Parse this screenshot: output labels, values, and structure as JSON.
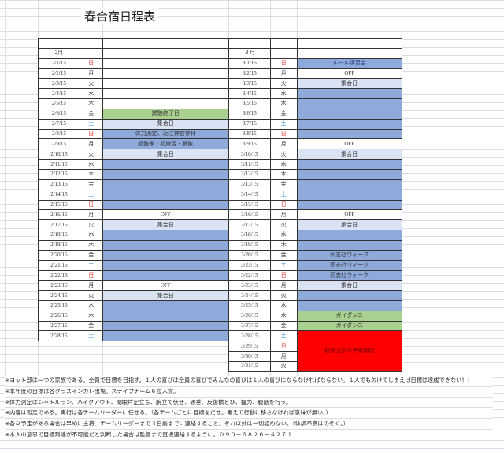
{
  "title": "春合宿日程表",
  "colors": {
    "blue": "#8eaadb",
    "light": "#dae3f3",
    "green": "#a9d08e",
    "red": "#ff0000",
    "sunday": "#e0302a",
    "saturday": "#2a8ad6"
  },
  "feb": {
    "header": "2月",
    "rows": [
      {
        "date": "2/1/15",
        "day": "日",
        "event": "",
        "fill": "white"
      },
      {
        "date": "2/2/15",
        "day": "月",
        "event": "",
        "fill": "white"
      },
      {
        "date": "2/3/15",
        "day": "火",
        "event": "",
        "fill": "white"
      },
      {
        "date": "2/4/15",
        "day": "水",
        "event": "",
        "fill": "white"
      },
      {
        "date": "2/5/15",
        "day": "木",
        "event": "",
        "fill": "white"
      },
      {
        "date": "2/6/15",
        "day": "金",
        "event": "試験終了日",
        "fill": "green"
      },
      {
        "date": "2/7/15",
        "day": "土",
        "event": "集合日",
        "fill": "light"
      },
      {
        "date": "2/8/15",
        "day": "日",
        "event": "体力測定、近江神宮参拝",
        "fill": "blue"
      },
      {
        "date": "2/9/15",
        "day": "月",
        "event": "艇整備・初練習・解散",
        "fill": "blue"
      },
      {
        "date": "2/10/15",
        "day": "火",
        "event": "集合日",
        "fill": "light"
      },
      {
        "date": "2/11/15",
        "day": "水",
        "event": "",
        "fill": "blue"
      },
      {
        "date": "2/12/15",
        "day": "木",
        "event": "",
        "fill": "blue"
      },
      {
        "date": "2/13/15",
        "day": "金",
        "event": "",
        "fill": "blue"
      },
      {
        "date": "2/14/15",
        "day": "土",
        "event": "",
        "fill": "blue"
      },
      {
        "date": "2/15/15",
        "day": "日",
        "event": "",
        "fill": "blue"
      },
      {
        "date": "2/16/15",
        "day": "月",
        "event": "OFF",
        "fill": "white"
      },
      {
        "date": "2/17/15",
        "day": "火",
        "event": "集合日",
        "fill": "light"
      },
      {
        "date": "2/18/15",
        "day": "水",
        "event": "",
        "fill": "blue"
      },
      {
        "date": "2/19/15",
        "day": "木",
        "event": "",
        "fill": "blue"
      },
      {
        "date": "2/20/15",
        "day": "金",
        "event": "",
        "fill": "blue"
      },
      {
        "date": "2/21/15",
        "day": "土",
        "event": "",
        "fill": "blue"
      },
      {
        "date": "2/22/15",
        "day": "日",
        "event": "",
        "fill": "blue"
      },
      {
        "date": "2/23/15",
        "day": "月",
        "event": "OFF",
        "fill": "white"
      },
      {
        "date": "2/24/15",
        "day": "火",
        "event": "集合日",
        "fill": "light"
      },
      {
        "date": "2/25/15",
        "day": "水",
        "event": "",
        "fill": "blue"
      },
      {
        "date": "2/26/15",
        "day": "木",
        "event": "",
        "fill": "blue"
      },
      {
        "date": "2/27/15",
        "day": "金",
        "event": "",
        "fill": "blue"
      },
      {
        "date": "2/28/15",
        "day": "土",
        "event": "",
        "fill": "blue"
      }
    ]
  },
  "mar": {
    "header": "３月",
    "rows": [
      {
        "date": "3/1/15",
        "day": "日",
        "event": "ルール講習会",
        "fill": "blue"
      },
      {
        "date": "3/2/15",
        "day": "月",
        "event": "OFF",
        "fill": "white"
      },
      {
        "date": "3/3/15",
        "day": "火",
        "event": "集合日",
        "fill": "light"
      },
      {
        "date": "3/4/15",
        "day": "水",
        "event": "",
        "fill": "blue"
      },
      {
        "date": "3/5/15",
        "day": "木",
        "event": "",
        "fill": "blue"
      },
      {
        "date": "3/6/15",
        "day": "金",
        "event": "",
        "fill": "blue"
      },
      {
        "date": "3/7/15",
        "day": "土",
        "event": "",
        "fill": "blue"
      },
      {
        "date": "3/8/15",
        "day": "日",
        "event": "",
        "fill": "blue"
      },
      {
        "date": "3/9/15",
        "day": "月",
        "event": "OFF",
        "fill": "white"
      },
      {
        "date": "3/10/15",
        "day": "火",
        "event": "集合日",
        "fill": "light"
      },
      {
        "date": "3/11/15",
        "day": "水",
        "event": "",
        "fill": "blue"
      },
      {
        "date": "3/12/15",
        "day": "木",
        "event": "",
        "fill": "blue"
      },
      {
        "date": "3/13/15",
        "day": "金",
        "event": "",
        "fill": "blue"
      },
      {
        "date": "3/14/15",
        "day": "土",
        "event": "",
        "fill": "blue"
      },
      {
        "date": "3/15/15",
        "day": "日",
        "event": "",
        "fill": "blue"
      },
      {
        "date": "3/16/15",
        "day": "月",
        "event": "OFF",
        "fill": "white"
      },
      {
        "date": "3/17/15",
        "day": "火",
        "event": "集合日",
        "fill": "light"
      },
      {
        "date": "3/18/15",
        "day": "水",
        "event": "",
        "fill": "blue"
      },
      {
        "date": "3/19/15",
        "day": "木",
        "event": "",
        "fill": "blue"
      },
      {
        "date": "3/20/15",
        "day": "金",
        "event": "同志社ウィーク",
        "fill": "blue"
      },
      {
        "date": "3/21/15",
        "day": "土",
        "event": "同志社ウィーク",
        "fill": "blue"
      },
      {
        "date": "3/22/15",
        "day": "日",
        "event": "同志社ウィーク",
        "fill": "blue"
      },
      {
        "date": "3/23/15",
        "day": "月",
        "event": "集合日",
        "fill": "light"
      },
      {
        "date": "3/24/15",
        "day": "火",
        "event": "",
        "fill": "blue"
      },
      {
        "date": "3/25/15",
        "day": "水",
        "event": "",
        "fill": "blue"
      },
      {
        "date": "3/26/15",
        "day": "木",
        "event": "ガイダンス",
        "fill": "green"
      },
      {
        "date": "3/27/15",
        "day": "金",
        "event": "ガイダンス",
        "fill": "green"
      },
      {
        "date": "3/28/15",
        "day": "土",
        "event": "勧誘活動の準備期間",
        "fill": "red",
        "span": 4
      },
      {
        "date": "3/29/15",
        "day": "日"
      },
      {
        "date": "3/30/15",
        "day": "月"
      },
      {
        "date": "3/31/15",
        "day": "火"
      }
    ]
  },
  "notes": [
    "※ヨット部は一つの家族である。全員で目標を目指す。１人の喜びは全員の喜びでみんなの喜びは１人の喜びにならなければならない。１人でも欠けてしまえば目標は達成できない！！",
    "※本年度の目標は各クラスインカレ出場。スナイプチーム６位入賞。",
    "※体力測定はシャトルラン、ハイクアウト、閉眼片足立ち、腕立て伏せ、懸垂、反復横とび、握力、腹筋を行う。",
    "※内容は暫定である。実行は各チームリーダーに任せる。（各チームごとに目標をだせ。考えて行動に移さなければ意味が無い。）",
    "※各々予定がある場合は早めに主将、チームリーダーまで３日前までに連絡すること。それ以外は一切認めない。（体調不良はのぞく。）",
    "※本人の意思で目標到達が不可能だと判断した場合は監督まで直接連絡するように。０９０－６８２６－４２７１"
  ]
}
